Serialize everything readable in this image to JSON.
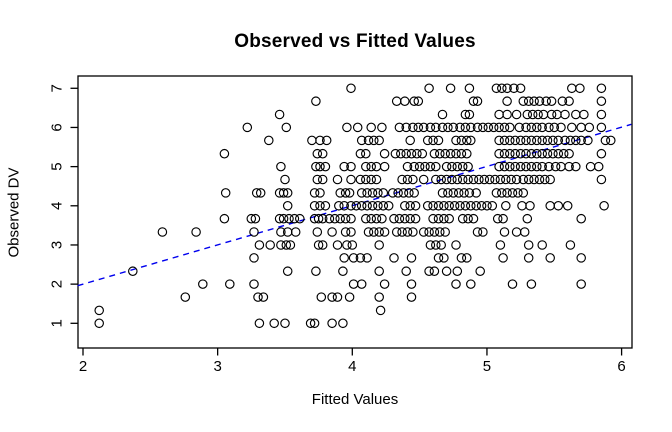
{
  "chart_data": {
    "type": "scatter",
    "title": "Observed vs Fitted Values",
    "xlabel": "Fitted Values",
    "ylabel": "Observed DV",
    "x_ticks": [
      2,
      3,
      4,
      5,
      6
    ],
    "y_ticks": [
      1,
      2,
      3,
      4,
      5,
      6,
      7
    ],
    "xlim": [
      1.96,
      6.08
    ],
    "ylim": [
      0.6,
      7.3
    ],
    "grid": false,
    "legend": "none",
    "marker": "open-circle",
    "marker_color": "#000000",
    "reference_line": {
      "name": "identity-line",
      "slope": 1,
      "intercept": 0,
      "color": "#0000ee",
      "style": "dashed"
    },
    "series": [
      {
        "name": "observations",
        "rows": [
          {
            "y": 7.0,
            "x": [
              3.99,
              4.57,
              4.73,
              4.87,
              5.07,
              5.11,
              5.15,
              5.2,
              5.25,
              5.63,
              5.69,
              5.85
            ]
          },
          {
            "y": 6.67,
            "x": [
              3.73,
              4.33,
              4.39,
              4.46,
              4.49,
              4.9,
              4.93,
              5.15,
              5.27,
              5.31,
              5.35,
              5.39,
              5.44,
              5.48,
              5.56,
              5.61,
              5.85
            ]
          },
          {
            "y": 6.33,
            "x": [
              3.46,
              4.67,
              4.84,
              4.87,
              5.09,
              5.15,
              5.22,
              5.3,
              5.34,
              5.38,
              5.42,
              5.48,
              5.52,
              5.58,
              5.66,
              5.72,
              5.85
            ]
          },
          {
            "y": 6.0,
            "x": [
              3.22,
              3.51,
              3.96,
              4.04,
              4.14,
              4.22,
              4.35,
              4.4,
              4.45,
              4.49,
              4.53,
              4.58,
              4.62,
              4.67,
              4.71,
              4.75,
              4.8,
              4.84,
              4.88,
              4.93,
              4.97,
              5.01,
              5.05,
              5.09,
              5.13,
              5.17,
              5.24,
              5.29,
              5.33,
              5.37,
              5.41,
              5.46,
              5.5,
              5.55,
              5.63,
              5.7,
              5.76,
              5.85
            ]
          },
          {
            "y": 5.67,
            "x": [
              3.38,
              3.7,
              3.76,
              3.81,
              4.07,
              4.12,
              4.16,
              4.2,
              4.43,
              4.56,
              4.6,
              4.64,
              4.77,
              4.81,
              4.85,
              4.88,
              5.09,
              5.13,
              5.17,
              5.21,
              5.25,
              5.29,
              5.33,
              5.37,
              5.41,
              5.45,
              5.49,
              5.53,
              5.58,
              5.62,
              5.66,
              5.7,
              5.75,
              5.88,
              5.92
            ]
          },
          {
            "y": 5.33,
            "x": [
              3.05,
              3.74,
              3.78,
              4.06,
              4.1,
              4.24,
              4.32,
              4.36,
              4.4,
              4.44,
              4.48,
              4.52,
              4.61,
              4.65,
              4.69,
              4.73,
              4.77,
              4.81,
              4.85,
              5.09,
              5.13,
              5.17,
              5.21,
              5.25,
              5.29,
              5.33,
              5.37,
              5.41,
              5.45,
              5.49,
              5.53,
              5.57,
              5.61,
              5.85
            ]
          },
          {
            "y": 5.0,
            "x": [
              3.47,
              3.73,
              3.76,
              3.8,
              3.94,
              3.99,
              4.1,
              4.14,
              4.18,
              4.24,
              4.41,
              4.46,
              4.5,
              4.54,
              4.58,
              4.62,
              4.7,
              4.74,
              4.78,
              4.82,
              4.86,
              5.09,
              5.13,
              5.17,
              5.21,
              5.25,
              5.29,
              5.33,
              5.37,
              5.41,
              5.46,
              5.51,
              5.55,
              5.61,
              5.66,
              5.77,
              5.83
            ]
          },
          {
            "y": 4.67,
            "x": [
              3.5,
              3.74,
              3.78,
              3.89,
              3.99,
              4.06,
              4.1,
              4.14,
              4.18,
              4.37,
              4.41,
              4.45,
              4.53,
              4.62,
              4.66,
              4.7,
              4.74,
              4.78,
              4.82,
              4.86,
              4.9,
              4.94,
              4.98,
              5.02,
              5.06,
              5.1,
              5.14,
              5.18,
              5.22,
              5.27,
              5.31,
              5.35,
              5.39,
              5.43,
              5.47,
              5.85
            ]
          },
          {
            "y": 4.33,
            "x": [
              3.06,
              3.29,
              3.32,
              3.46,
              3.49,
              3.52,
              3.72,
              3.76,
              3.91,
              3.95,
              3.98,
              4.07,
              4.11,
              4.15,
              4.19,
              4.23,
              4.3,
              4.34,
              4.38,
              4.42,
              4.46,
              4.67,
              4.71,
              4.75,
              4.79,
              4.83,
              4.87,
              4.92,
              5.07,
              5.11,
              5.15,
              5.19,
              5.23,
              5.27
            ]
          },
          {
            "y": 4.0,
            "x": [
              3.52,
              3.72,
              3.76,
              3.8,
              3.9,
              3.94,
              3.99,
              4.03,
              4.07,
              4.11,
              4.15,
              4.19,
              4.23,
              4.27,
              4.39,
              4.43,
              4.47,
              4.56,
              4.6,
              4.64,
              4.68,
              4.72,
              4.76,
              4.8,
              4.84,
              4.88,
              4.92,
              4.96,
              5.0,
              5.04,
              5.14,
              5.26,
              5.32,
              5.47,
              5.53,
              5.6,
              5.87
            ]
          },
          {
            "y": 3.67,
            "x": [
              3.05,
              3.25,
              3.28,
              3.46,
              3.49,
              3.53,
              3.57,
              3.61,
              3.72,
              3.75,
              3.78,
              3.83,
              3.87,
              3.91,
              3.95,
              3.99,
              4.1,
              4.14,
              4.18,
              4.22,
              4.31,
              4.35,
              4.39,
              4.43,
              4.47,
              4.6,
              4.64,
              4.68,
              4.72,
              4.82,
              4.86,
              4.9,
              5.08,
              5.12,
              5.3,
              5.7
            ]
          },
          {
            "y": 3.33,
            "x": [
              2.59,
              2.84,
              3.27,
              3.47,
              3.52,
              3.58,
              3.74,
              3.85,
              3.95,
              3.99,
              4.12,
              4.16,
              4.2,
              4.24,
              4.33,
              4.37,
              4.41,
              4.45,
              4.53,
              4.57,
              4.61,
              4.65,
              4.69,
              4.93,
              4.97,
              5.13,
              5.22,
              5.28
            ]
          },
          {
            "y": 3.0,
            "x": [
              3.31,
              3.39,
              3.47,
              3.51,
              3.54,
              3.75,
              3.78,
              3.89,
              3.96,
              4.0,
              4.2,
              4.58,
              4.62,
              4.66,
              4.77,
              5.1,
              5.31,
              5.41,
              5.62
            ]
          },
          {
            "y": 2.67,
            "x": [
              3.27,
              3.94,
              4.01,
              4.06,
              4.11,
              4.31,
              4.44,
              4.64,
              4.68,
              4.81,
              4.85,
              5.12,
              5.31,
              5.47,
              5.7
            ]
          },
          {
            "y": 2.33,
            "x": [
              2.37,
              3.52,
              3.73,
              3.93,
              4.2,
              4.4,
              4.57,
              4.61,
              4.7,
              4.78,
              4.95
            ]
          },
          {
            "y": 2.0,
            "x": [
              2.89,
              3.09,
              3.27,
              4.01,
              4.07,
              4.24,
              4.44,
              4.77,
              4.88,
              5.19,
              5.33,
              5.7
            ]
          },
          {
            "y": 1.67,
            "x": [
              2.76,
              3.3,
              3.34,
              3.77,
              3.85,
              3.89,
              3.98,
              4.2,
              4.44
            ]
          },
          {
            "y": 1.33,
            "x": [
              2.12,
              4.21
            ]
          },
          {
            "y": 1.0,
            "x": [
              2.12,
              3.31,
              3.42,
              3.5,
              3.69,
              3.72,
              3.85,
              3.93
            ]
          }
        ]
      }
    ]
  }
}
